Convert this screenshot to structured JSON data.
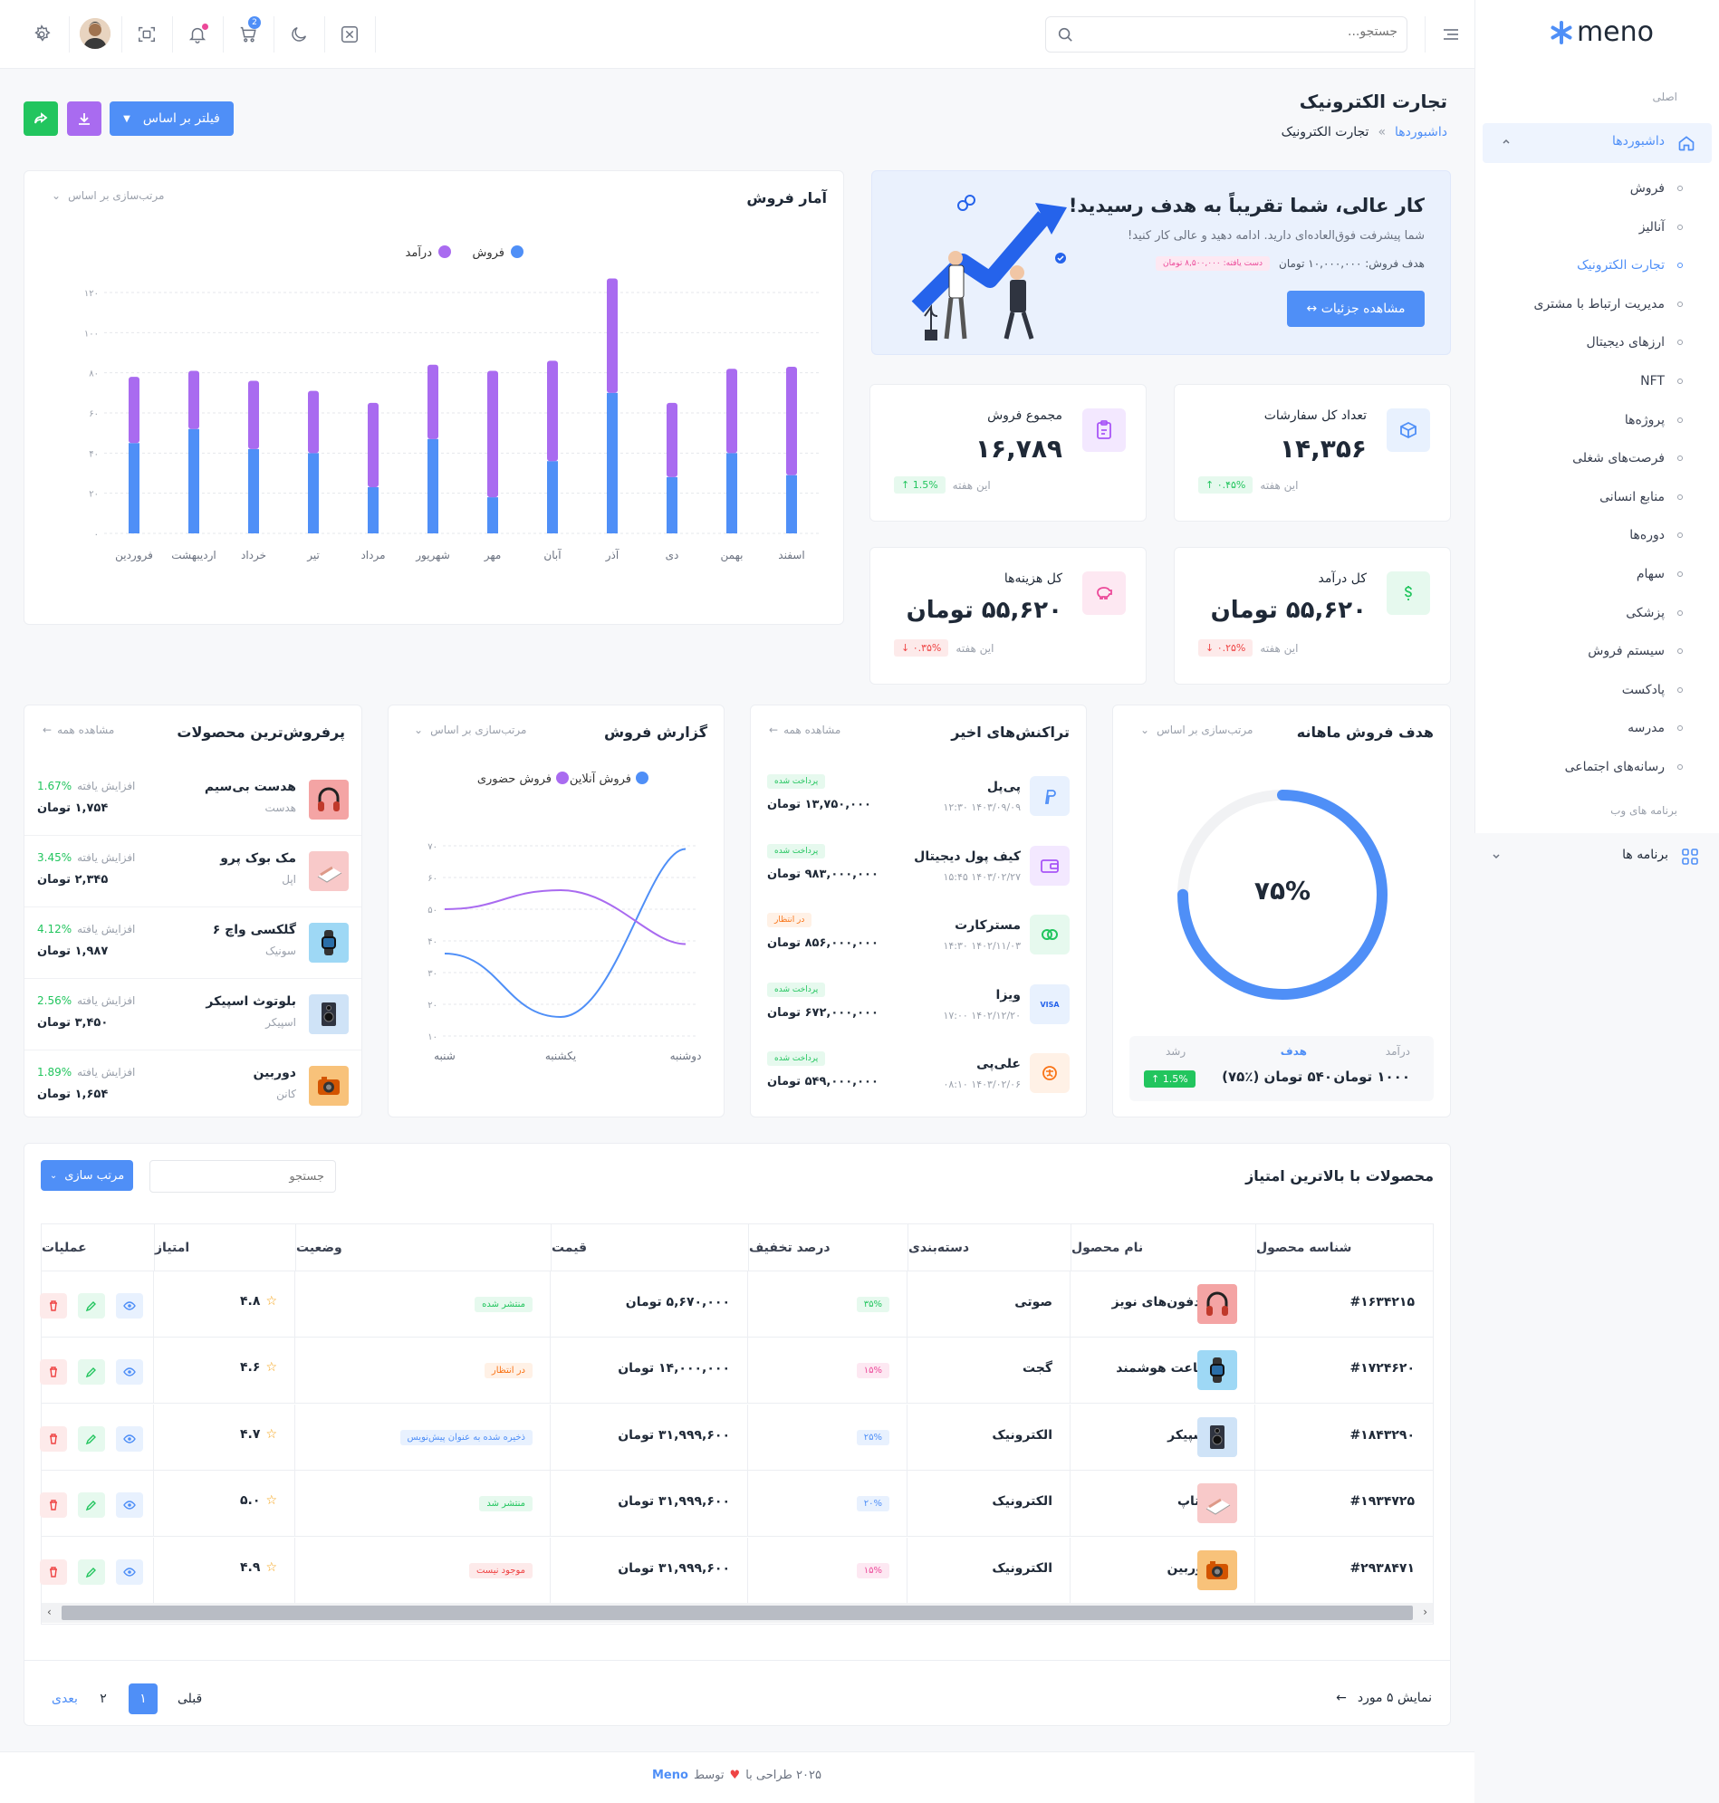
{
  "sidebar": {
    "logo": "meno",
    "section_main": "اصلی",
    "dashboards": "داشبوردها",
    "items": [
      "فروش",
      "آنالیز",
      "تجارت الکترونیک",
      "مدیریت ارتباط با مشتری",
      "ارزهای دیجیتال",
      "NFT",
      "پروژه‌ها",
      "فرصت‌های شغلی",
      "منابع انسانی",
      "دوره‌ها",
      "سهام",
      "پزشکی",
      "سیستم فروش",
      "پادکست",
      "مدرسه",
      "رسانه‌های اجتماعی"
    ],
    "section_web": "برنامه های وب",
    "apps": "برنامه ها"
  },
  "header": {
    "search_placeholder": "جستجو...",
    "cart_badge": "2"
  },
  "page": {
    "title": "تجارت الکترونیک",
    "breadcrumb_root": "داشبوردها",
    "breadcrumb_sep": "»",
    "breadcrumb_current": "تجارت الکترونیک",
    "filter_button": "فیلتر بر اساس"
  },
  "welcome": {
    "title": "کار عالی، شما تقریباً به هدف رسیدید!",
    "subtitle": "شما پیشرفت فوق‌العاده‌ای دارید. ادامه دهید و عالی کار کنید!",
    "goal_text": "هدف فروش: ۱۰,۰۰۰,۰۰۰ تومان",
    "achieved": "دست یافته: ۸,۵۰۰,۰۰۰ تومان",
    "button": "مشاهده جزئیات ↔"
  },
  "stats": [
    {
      "title": "تعداد کل سفارشات",
      "value": "۱۴,۳۵۶",
      "change": "↑ ۰.۴۵%",
      "period": "این هفته",
      "trend": "up",
      "icon": "box-icon",
      "color": "#4f8ff7",
      "bg": "#e8f1fe"
    },
    {
      "title": "مجموع فروش",
      "value": "۱۶,۷۸۹",
      "change": "↑ 1.5%",
      "period": "این هفته",
      "trend": "up",
      "icon": "clipboard-icon",
      "color": "#a855f7",
      "bg": "#f3e8ff"
    },
    {
      "title": "کل درآمد",
      "value": "۵۵,۶۲۰ تومان",
      "change": "↓ ۰.۲۵%",
      "period": "این هفته",
      "trend": "down",
      "icon": "dollar-icon",
      "color": "#22c55e",
      "bg": "#e6f9ee"
    },
    {
      "title": "کل هزینه‌ها",
      "value": "۵۵,۶۲۰ تومان",
      "change": "↓ ۰.۳۵%",
      "period": "این هفته",
      "trend": "down",
      "icon": "piggy-icon",
      "color": "#ec4899",
      "bg": "#fde8f2"
    }
  ],
  "sales_chart_card": {
    "title": "آمار فروش",
    "sort_label": "مرتب‌سازی بر اساس"
  },
  "chart_data": [
    {
      "type": "bar",
      "title": "آمار فروش",
      "stacked": true,
      "categories": [
        "فروردین",
        "اردیبهشت",
        "خرداد",
        "تیر",
        "مرداد",
        "شهریور",
        "مهر",
        "آبان",
        "آذر",
        "دی",
        "بهمن",
        "اسفند"
      ],
      "series": [
        {
          "name": "فروش",
          "color": "#4f8ff7",
          "values": [
            45,
            52,
            42,
            40,
            23,
            47,
            18,
            36,
            70,
            28,
            40,
            29
          ]
        },
        {
          "name": "درآمد",
          "color": "#a96bf0",
          "values": [
            33,
            29,
            34,
            31,
            42,
            37,
            63,
            50,
            57,
            37,
            42,
            54
          ]
        }
      ],
      "ylim": [
        0,
        120
      ],
      "yticks": [
        "۰",
        "۲۰",
        "۴۰",
        "۶۰",
        "۸۰",
        "۱۰۰",
        "۱۲۰"
      ],
      "legend": "top-center",
      "grid": true
    },
    {
      "type": "line",
      "title": "گزارش فروش",
      "categories": [
        "شنبه",
        "یکشنبه",
        "دوشنبه"
      ],
      "series": [
        {
          "name": "فروش آنلاین",
          "color": "#4f8ff7",
          "values": [
            36,
            16,
            69
          ]
        },
        {
          "name": "فروش حضوری",
          "color": "#a96bf0",
          "values": [
            50,
            56,
            39
          ]
        }
      ],
      "ylim": [
        10,
        70
      ],
      "yticks": [
        "۱۰",
        "۲۰",
        "۳۰",
        "۴۰",
        "۵۰",
        "۶۰",
        "۷۰"
      ],
      "legend": "top-center",
      "grid": true
    },
    {
      "type": "pie",
      "title": "هدف فروش ماهانه",
      "values": [
        75,
        25
      ],
      "center_label": "۷۵%"
    }
  ],
  "goal_card": {
    "title": "هدف فروش ماهانه",
    "sort_label": "مرتب‌سازی بر اساس",
    "percent": 0.75,
    "center": "۷۵%",
    "income_label": "درآمد",
    "income_value": "۱۰۰۰ تومان",
    "target_label": "هدف",
    "target_value": "۵۴۰ تومان (٪۷۵)",
    "growth_label": "رشد",
    "growth_value": "↑ 1.5%"
  },
  "transactions": {
    "title": "تراکنش‌های اخیر",
    "view_all": "مشاهده همه",
    "items": [
      {
        "name": "پی‌پل",
        "date": "۱۴۰۳/۰۹/۰۹ ۱۲:۳۰",
        "amount": "۱۳,۷۵۰,۰۰۰ تومان",
        "status": "پرداخت شده",
        "status_type": "success",
        "icon": "paypal-icon",
        "icon_bg": "#e8f1fe",
        "icon_color": "#4f8ff7"
      },
      {
        "name": "کیف پول دیجیتال",
        "date": "۱۴۰۳/۰۲/۲۷ ۱۵:۴۵",
        "amount": "۹۸۳,۰۰۰,۰۰۰ تومان",
        "status": "پرداخت شده",
        "status_type": "success",
        "icon": "wallet-icon",
        "icon_bg": "#f3e8ff",
        "icon_color": "#a855f7"
      },
      {
        "name": "مسترکارت",
        "date": "۱۴۰۲/۱۱/۰۳ ۱۴:۳۰",
        "amount": "۸۵۶,۰۰۰,۰۰۰ تومان",
        "status": "در انتظار",
        "status_type": "pending",
        "icon": "mastercard-icon",
        "icon_bg": "#e6f9ee",
        "icon_color": "#22c55e"
      },
      {
        "name": "ویزا",
        "date": "۱۴۰۲/۱۲/۲۰ ۱۷:۰۰",
        "amount": "۶۷۲,۰۰۰,۰۰۰ تومان",
        "status": "پرداخت شده",
        "status_type": "success",
        "icon": "visa-icon",
        "icon_bg": "#e8f1fe",
        "icon_color": "#2563eb"
      },
      {
        "name": "علی‌پی",
        "date": "۱۴۰۳/۰۲/۰۶ ۰۸:۱۰",
        "amount": "۵۴۹,۰۰۰,۰۰۰ تومان",
        "status": "پرداخت شده",
        "status_type": "success",
        "icon": "alipay-icon",
        "icon_bg": "#fff1e6",
        "icon_color": "#f97316"
      }
    ]
  },
  "sales_report": {
    "title": "گزارش فروش",
    "sort_label": "مرتب‌سازی بر اساس"
  },
  "top_products": {
    "title": "پرفروش‌ترین محصولات",
    "view_all": "مشاهده همه",
    "items": [
      {
        "name": "هدست بی‌سیم",
        "category": "هدست",
        "change": "1.67%",
        "change_label": "افزایش یافته",
        "price": "۱,۷۵۴ تومان",
        "icon": "headphones-icon",
        "bg": "#f4a4a4"
      },
      {
        "name": "مک بوک پرو",
        "category": "اپل",
        "change": "3.45%",
        "change_label": "افزایش یافته",
        "price": "۲,۳۴۵ تومان",
        "icon": "laptop-icon",
        "bg": "#f8c9c9"
      },
      {
        "name": "گلکسی واچ ۶",
        "category": "سونیک",
        "change": "4.12%",
        "change_label": "افزایش یافته",
        "price": "۱,۹۸۷ تومان",
        "icon": "watch-icon",
        "bg": "#9ed8f5"
      },
      {
        "name": "بلوتوث اسپیکر",
        "category": "اسپیکر",
        "change": "2.56%",
        "change_label": "افزایش یافته",
        "price": "۳,۴۵۰ تومان",
        "icon": "speaker-icon",
        "bg": "#cfe3f7"
      },
      {
        "name": "دوربین",
        "category": "کانن",
        "change": "1.89%",
        "change_label": "افزایش یافته",
        "price": "۱,۶۵۴ تومان",
        "icon": "camera-icon",
        "bg": "#f8c27a"
      }
    ]
  },
  "table": {
    "title": "محصولات با بالاترین امتیاز",
    "search_placeholder": "جستجو",
    "sort_button": "مرتب سازی",
    "columns": [
      "شناسه محصول",
      "نام محصول",
      "دسته‌بندی",
      "درصد تخفیف",
      "قیمت",
      "وضعیت",
      "امتیاز",
      "عملیات"
    ],
    "rows": [
      {
        "id": "#۱۶۳۴۲۱۵",
        "name": "هدفون‌های نویز",
        "category": "صوتی",
        "discount": "۳۵%",
        "discount_color": "#22c55e",
        "discount_bg": "#e6f9ee",
        "price": "۵,۶۷۰,۰۰۰ تومان",
        "status": "منتشر شده",
        "status_color": "#22c55e",
        "status_bg": "#e6f9ee",
        "rating": "۴.۸",
        "icon": "headphones-icon",
        "bg": "#f4a4a4"
      },
      {
        "id": "#۱۷۲۴۶۲۰",
        "name": "ساعت هوشمند",
        "category": "گجت",
        "discount": "۱۵%",
        "discount_color": "#ec4899",
        "discount_bg": "#fde8f2",
        "price": "۱۴,۰۰۰,۰۰۰ تومان",
        "status": "در انتظار",
        "status_color": "#f97316",
        "status_bg": "#fff1e6",
        "rating": "۴.۶",
        "icon": "watch-icon",
        "bg": "#9ed8f5"
      },
      {
        "id": "#۱۸۴۳۲۹۰",
        "name": "اسپیکر",
        "category": "الکترونیک",
        "discount": "۲۵%",
        "discount_color": "#4f8ff7",
        "discount_bg": "#e8f1fe",
        "price": "۳۱,۹۹۹,۶۰۰ تومان",
        "status": "ذخیره شده به عنوان پیش‌نویس",
        "status_color": "#4f8ff7",
        "status_bg": "#e8f1fe",
        "rating": "۴.۷",
        "icon": "speaker-icon",
        "bg": "#cfe3f7"
      },
      {
        "id": "#۱۹۳۴۷۲۵",
        "name": "لپتاپ",
        "category": "الکترونیک",
        "discount": "۲۰%",
        "discount_color": "#4f8ff7",
        "discount_bg": "#e8f1fe",
        "price": "۳۱,۹۹۹,۶۰۰ تومان",
        "status": "منتشر شد",
        "status_color": "#22c55e",
        "status_bg": "#e6f9ee",
        "rating": "۵.۰",
        "icon": "laptop-icon",
        "bg": "#f8c9c9"
      },
      {
        "id": "#۲۹۳۸۴۷۱",
        "name": "دوربین",
        "category": "الکترونیک",
        "discount": "۱۵%",
        "discount_color": "#ec4899",
        "discount_bg": "#fde8f2",
        "price": "۳۱,۹۹۹,۶۰۰ تومان",
        "status": "موجود نیست",
        "status_color": "#ef4444",
        "status_bg": "#fdeaea",
        "rating": "۴.۹",
        "icon": "camera-icon",
        "bg": "#f8c27a"
      }
    ],
    "showing": "نمایش ۵ مورد",
    "prev": "قبلی",
    "next": "بعدی",
    "pages": [
      "۱",
      "۲"
    ]
  },
  "footer": {
    "text": "۲۰۲۵ طراحی با",
    "by": "توسط",
    "brand": "Meno"
  },
  "colors": {
    "primary": "#4f8ff7",
    "purple": "#a96bf0",
    "green": "#22c55e"
  }
}
